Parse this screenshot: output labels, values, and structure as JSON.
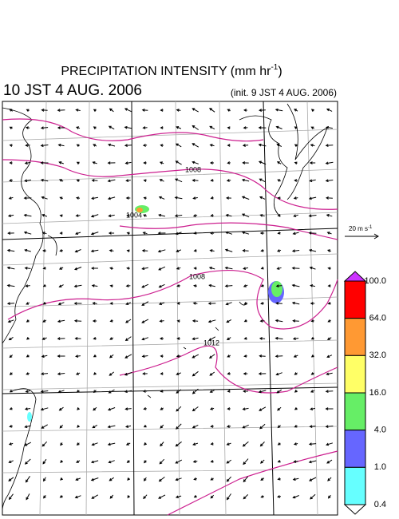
{
  "header": {
    "title": "PRECIPITATION INTENSITY (mm hr",
    "title_sup": "-1",
    "title_end": ")",
    "valid_time": "10 JST 4 AUG. 2006",
    "init_time": "(init. 9 JST 4 AUG. 2006)"
  },
  "wind_scale": {
    "label": "20 m s",
    "label_sup": "-1"
  },
  "contour_labels": [
    "1008",
    "1004",
    "1008",
    "1012"
  ],
  "colorbar": {
    "labels": [
      "100.0",
      "64.0",
      "32.0",
      "16.0",
      "4.0",
      "1.0",
      "0.4"
    ],
    "colors": [
      "#cc33ff",
      "#ff0000",
      "#ff9933",
      "#ffff66",
      "#66ee66",
      "#6666ff",
      "#66ffff",
      "#ffffff"
    ]
  }
}
